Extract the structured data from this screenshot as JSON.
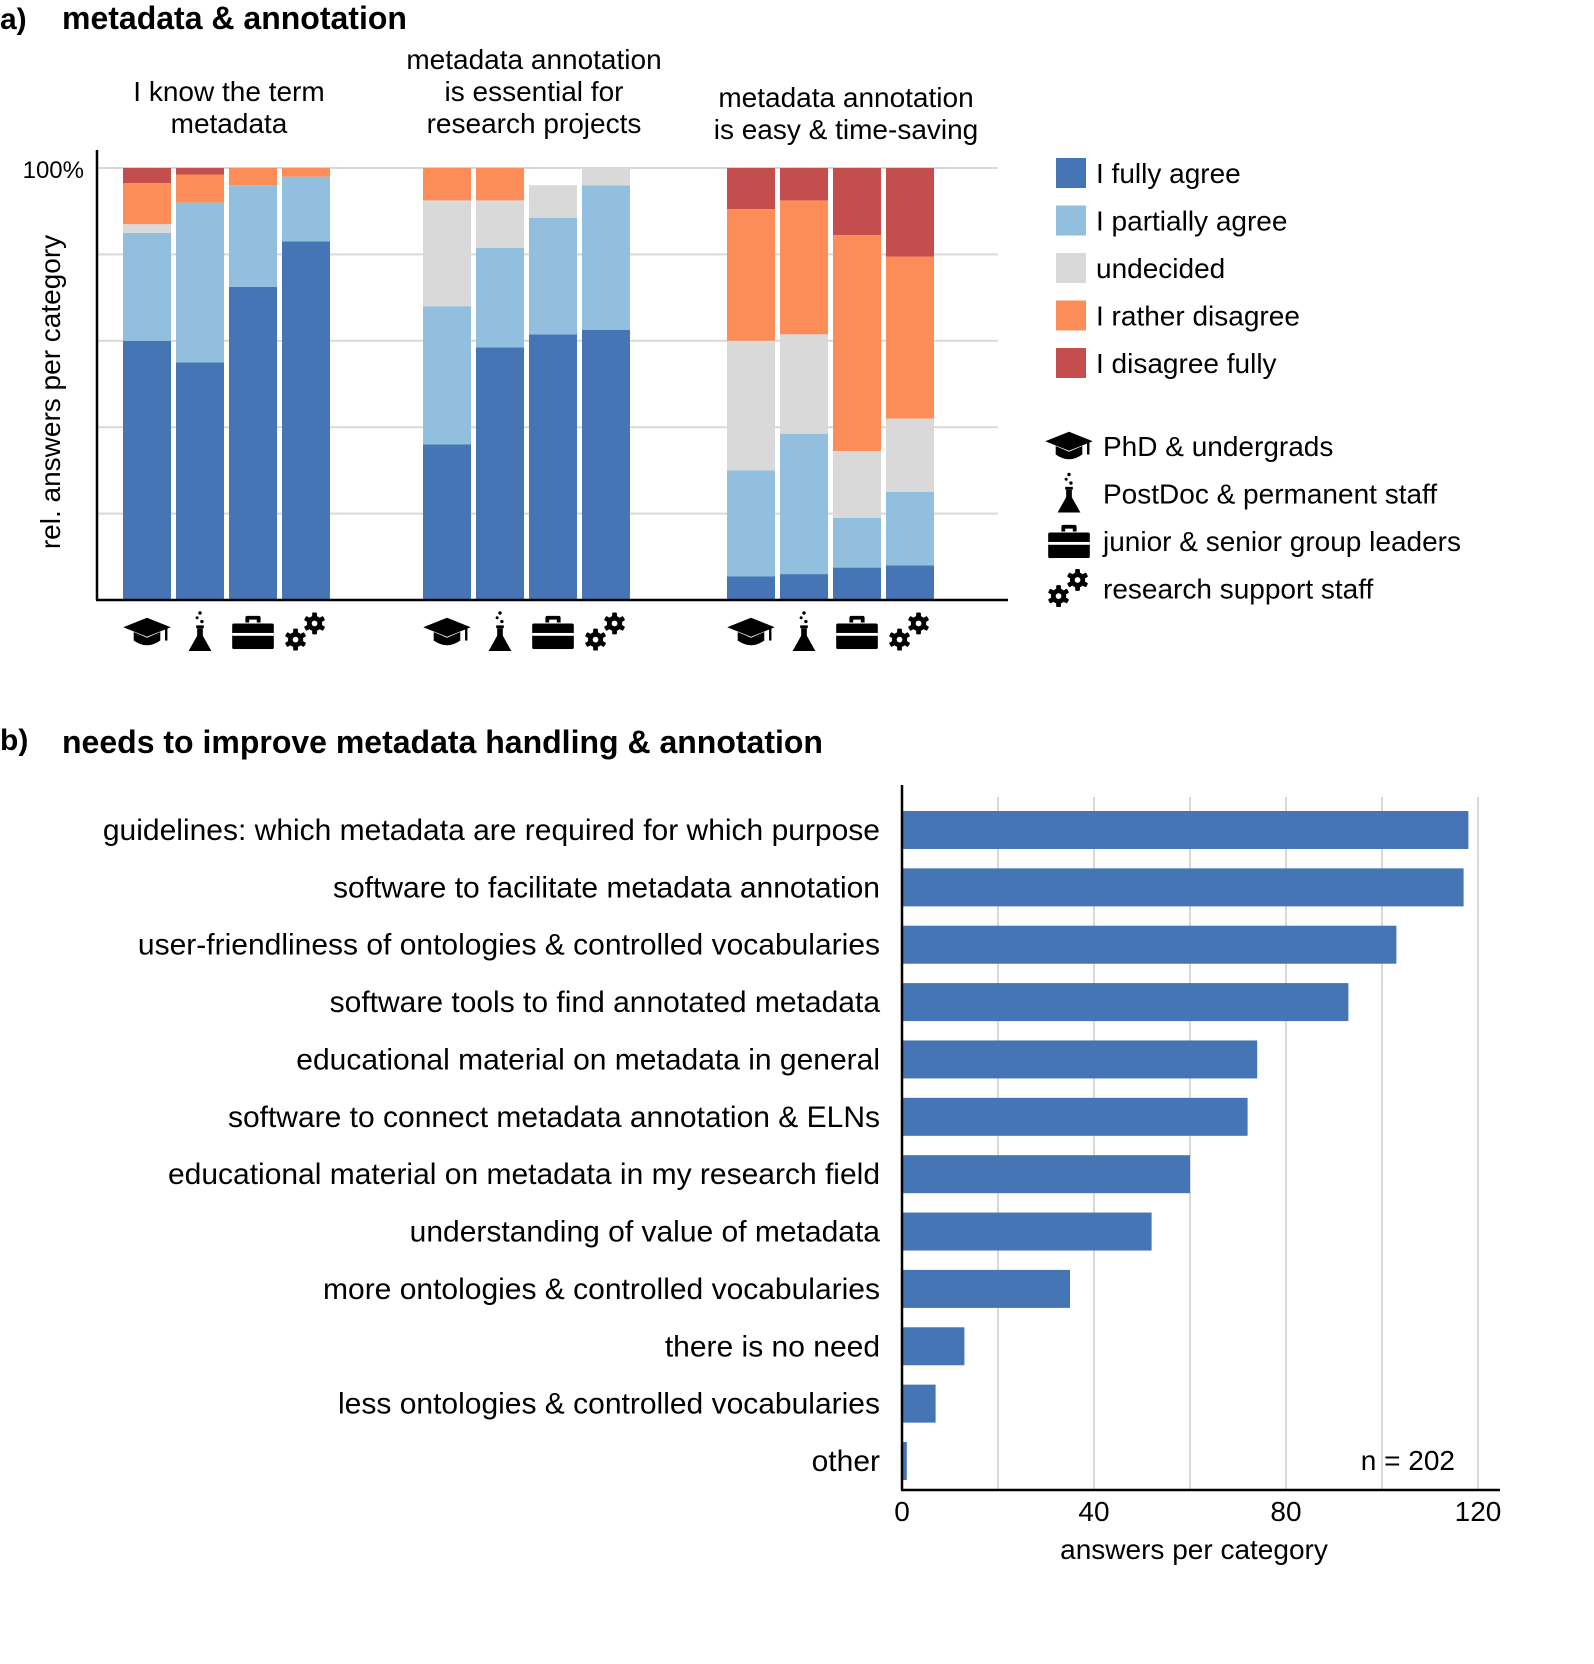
{
  "panel_a": {
    "letter": "a)",
    "title": "metadata & annotation",
    "ylabel": "rel. answers per category",
    "ytick_top": "100%"
  },
  "panel_b": {
    "letter": "b)",
    "title": "needs to improve metadata handling & annotation",
    "n_note": "n = 202"
  },
  "legend_responses": [
    {
      "label": "I fully agree",
      "color": "#4575b4"
    },
    {
      "label": "I partially agree",
      "color": "#92bfdd"
    },
    {
      "label": "undecided",
      "color": "#d9d9d9"
    },
    {
      "label": "I rather disagree",
      "color": "#fc8d59"
    },
    {
      "label": "I disagree fully",
      "color": "#c44e4e"
    }
  ],
  "legend_groups": [
    {
      "label": "PhD & undergrads",
      "icon": "graduation-cap-icon"
    },
    {
      "label": "PostDoc & permanent staff",
      "icon": "flask-icon"
    },
    {
      "label": "junior & senior group leaders",
      "icon": "briefcase-icon"
    },
    {
      "label": "research support staff",
      "icon": "gears-icon"
    }
  ],
  "chart_data": [
    {
      "type": "bar",
      "stacked": true,
      "normalized": true,
      "ylabel": "rel. answers per category",
      "ylim": [
        0,
        100
      ],
      "legend_position": "right",
      "segment_order": [
        "I fully agree",
        "I partially agree",
        "undecided",
        "I rather disagree",
        "I disagree fully"
      ],
      "groups": [
        {
          "title": [
            "I know the term",
            "metadata"
          ],
          "bars": [
            {
              "category": "PhD & undergrads",
              "values": [
                60,
                25,
                2,
                9.5,
                3.5
              ]
            },
            {
              "category": "PostDoc & permanent staff",
              "values": [
                55,
                37,
                0,
                6.5,
                1.5
              ]
            },
            {
              "category": "junior & senior group leaders",
              "values": [
                72.5,
                23.5,
                0,
                4,
                0
              ]
            },
            {
              "category": "research support staff",
              "values": [
                83,
                15,
                0,
                2,
                0
              ]
            }
          ]
        },
        {
          "title": [
            "metadata annotation",
            "is essential for",
            "research projects"
          ],
          "bars": [
            {
              "category": "PhD & undergrads",
              "values": [
                36,
                32,
                24.5,
                7.5,
                0
              ]
            },
            {
              "category": "PostDoc & permanent staff",
              "values": [
                58.5,
                23,
                11,
                7.5,
                0
              ]
            },
            {
              "category": "junior & senior group leaders",
              "values": [
                61.5,
                27,
                7.5,
                0,
                0
              ]
            },
            {
              "category": "research support staff",
              "values": [
                62.5,
                33.5,
                4,
                0,
                0
              ]
            }
          ]
        },
        {
          "title": [
            "metadata annotation",
            "is easy & time-saving"
          ],
          "bars": [
            {
              "category": "PhD & undergrads",
              "values": [
                5.5,
                24.5,
                30,
                30.5,
                9.5
              ]
            },
            {
              "category": "PostDoc & permanent staff",
              "values": [
                6,
                32.5,
                23,
                31,
                7.5
              ]
            },
            {
              "category": "junior & senior group leaders",
              "values": [
                7.5,
                11.5,
                15.5,
                50,
                15.5
              ]
            },
            {
              "category": "research support staff",
              "values": [
                8,
                17,
                17,
                37.5,
                20.5
              ]
            }
          ]
        }
      ]
    },
    {
      "type": "bar",
      "orientation": "horizontal",
      "title": "needs to improve metadata handling & annotation",
      "xlabel": "answers per category",
      "xlim": [
        0,
        120
      ],
      "xticks": [
        0,
        40,
        80,
        120
      ],
      "grid": true,
      "categories": [
        "guidelines: which metadata are required for which purpose",
        "software to facilitate metadata annotation",
        "user-friendliness of ontologies & controlled vocabularies",
        "software tools to find annotated metadata",
        "educational material on metadata in general",
        "software to connect metadata annotation & ELNs",
        "educational material on metadata in my research field",
        "understanding of value of metadata",
        "more ontologies & controlled vocabularies",
        "there is no need",
        "less ontologies & controlled vocabularies",
        "other"
      ],
      "values": [
        118,
        117,
        103,
        93,
        74,
        72,
        60,
        52,
        35,
        13,
        7,
        1
      ],
      "color": "#4575b4",
      "annotation": "n = 202"
    }
  ]
}
